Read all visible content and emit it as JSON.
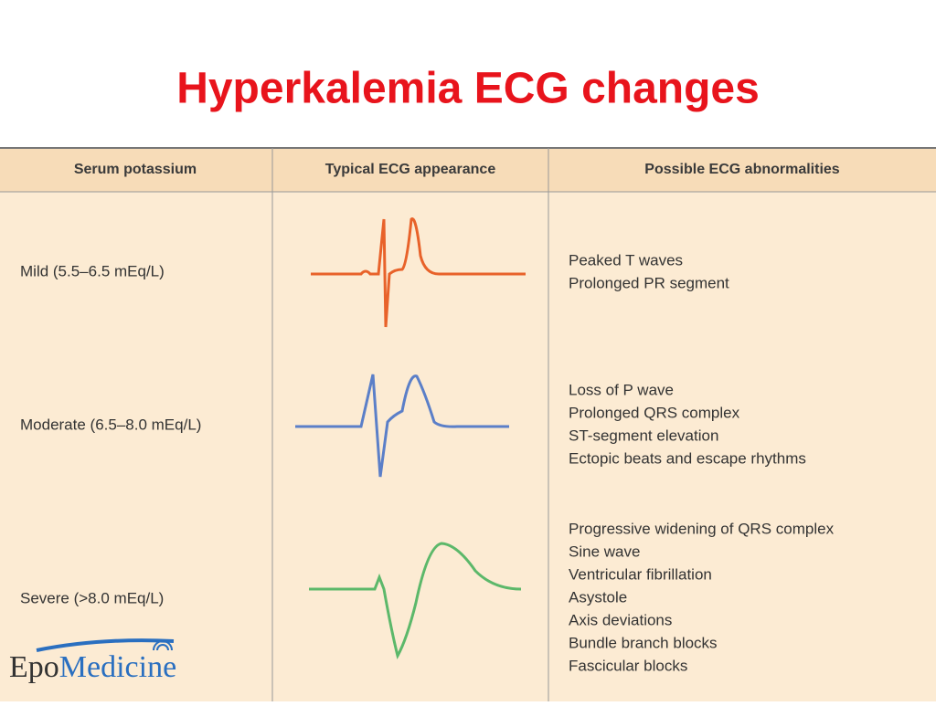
{
  "title": "Hyperkalemia ECG changes",
  "table": {
    "headers": [
      "Serum potassium",
      "Typical ECG appearance",
      "Possible ECG abnormalities"
    ],
    "rows": [
      {
        "level": "Mild (5.5–6.5 mEq/L)",
        "abnormalities": [
          "Peaked T waves",
          "Prolonged PR segment"
        ]
      },
      {
        "level": "Moderate (6.5–8.0 mEq/L)",
        "abnormalities": [
          "Loss of P wave",
          "Prolonged QRS complex",
          "ST-segment elevation",
          "Ectopic beats and escape rhythms"
        ]
      },
      {
        "level": "Severe (>8.0 mEq/L)",
        "abnormalities": [
          "Progressive widening of QRS complex",
          "Sine wave",
          "Ventricular fibrillation",
          "Asystole",
          "Axis deviations",
          "Bundle branch blocks",
          "Fascicular blocks"
        ]
      }
    ]
  },
  "logo": {
    "first": "Epo",
    "second": "Medicine"
  }
}
